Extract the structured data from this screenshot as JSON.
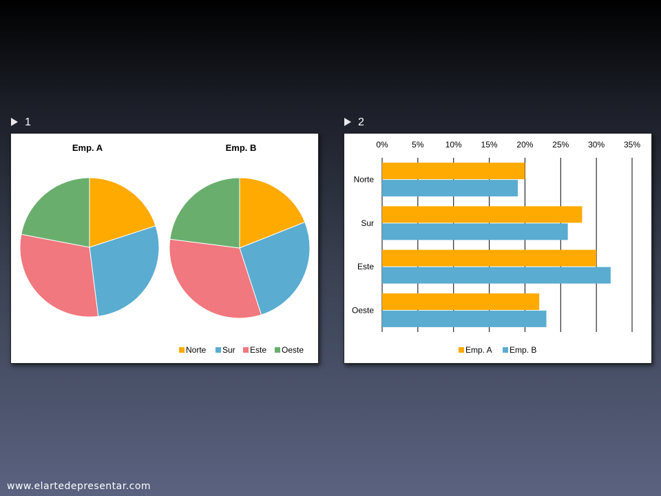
{
  "slides": [
    {
      "number": "1"
    },
    {
      "number": "2"
    }
  ],
  "footer": "www.elartedepresentar.com",
  "colors": {
    "Norte": "#FFAA00",
    "Sur": "#5AACD1",
    "Este": "#F0787E",
    "Oeste": "#6AAE6E"
  },
  "chart_data": [
    {
      "type": "pie",
      "title": "Emp. A",
      "categories": [
        "Norte",
        "Sur",
        "Este",
        "Oeste"
      ],
      "values": [
        20,
        28,
        30,
        22
      ],
      "legend": "bottom-right"
    },
    {
      "type": "pie",
      "title": "Emp. B",
      "categories": [
        "Norte",
        "Sur",
        "Este",
        "Oeste"
      ],
      "values": [
        19,
        26,
        32,
        23
      ],
      "legend": "bottom-right"
    },
    {
      "type": "bar",
      "orientation": "horizontal",
      "categories": [
        "Norte",
        "Sur",
        "Este",
        "Oeste"
      ],
      "series": [
        {
          "name": "Emp. A",
          "values": [
            20,
            28,
            30,
            22
          ]
        },
        {
          "name": "Emp. B",
          "values": [
            19,
            26,
            32,
            23
          ]
        }
      ],
      "xlim": [
        0,
        35
      ],
      "xticks": [
        "0%",
        "5%",
        "10%",
        "15%",
        "20%",
        "25%",
        "30%",
        "35%"
      ],
      "xaxis_position": "top",
      "grid": true,
      "legend": "bottom-center"
    }
  ]
}
